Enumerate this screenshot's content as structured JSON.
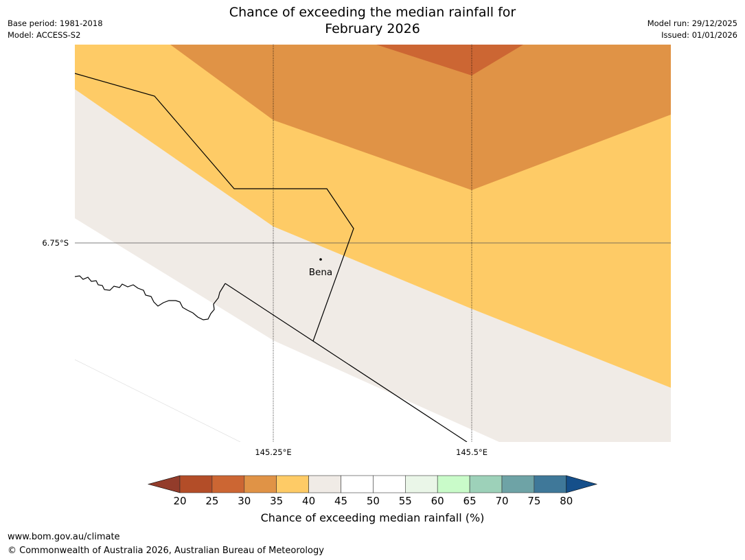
{
  "header": {
    "title_line1": "Chance of exceeding the median rainfall for",
    "title_line2": "February 2026",
    "base_period": "Base period: 1981-2018",
    "model": "Model: ACCESS-S2",
    "model_run": "Model run: 29/12/2025",
    "issued": "Issued: 01/01/2026"
  },
  "map": {
    "lat_labels": [
      "6.75°S"
    ],
    "lon_labels": [
      "145.25°E",
      "145.5°E"
    ],
    "places": [
      {
        "name": "Bena"
      }
    ],
    "colors": {
      "cat_25_30": "#cc6633",
      "cat_30_35": "#e09346",
      "cat_35_40": "#fecb66",
      "cat_40_45": "#f0ebe6",
      "cat_45_55": "#ffffff"
    }
  },
  "colorbar": {
    "ticks": [
      "20",
      "25",
      "30",
      "35",
      "40",
      "45",
      "50",
      "55",
      "60",
      "65",
      "70",
      "75",
      "80"
    ],
    "under_color": "#933c2b",
    "over_color": "#154f8a",
    "bin_colors": [
      "#b34d28",
      "#cc6633",
      "#e09346",
      "#fecb66",
      "#f0ebe6",
      "#ffffff",
      "#ffffff",
      "#eaf6e8",
      "#c9fbc9",
      "#9dd1b9",
      "#6ea3a6",
      "#3f7899"
    ],
    "label": "Chance of exceeding median rainfall (%)"
  },
  "footer": {
    "url": "www.bom.gov.au/climate",
    "copyright": "© Commonwealth of Australia 2026, Australian Bureau of Meteorology"
  }
}
